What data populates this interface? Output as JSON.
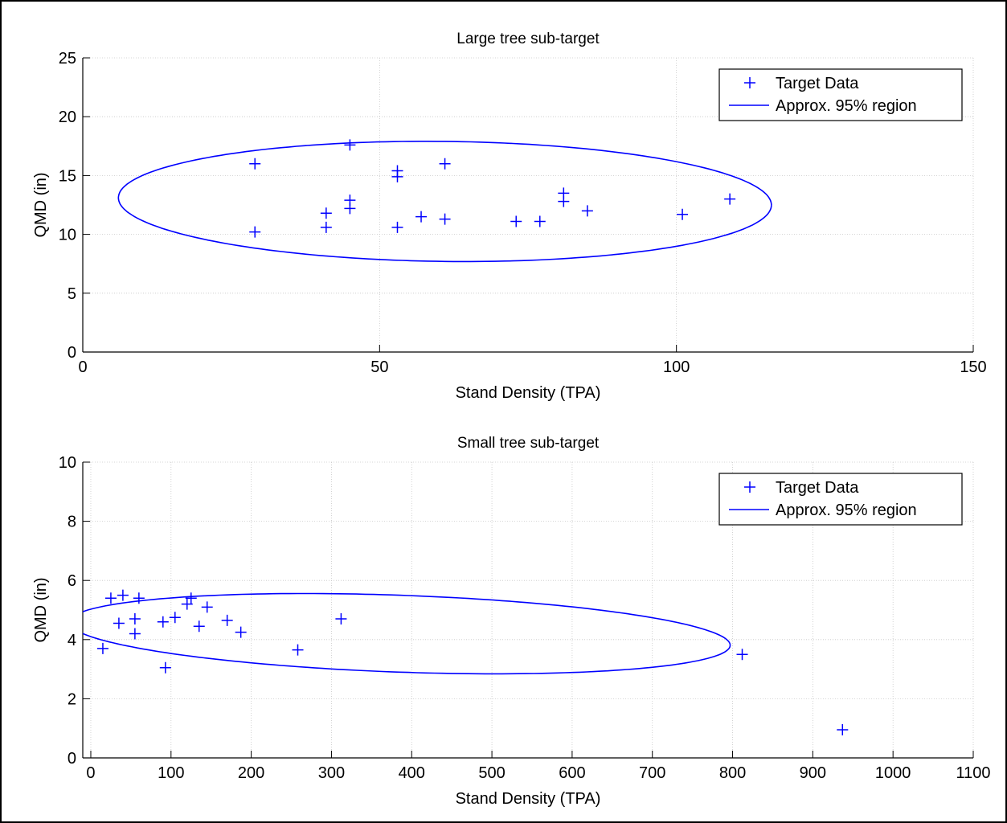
{
  "chart_data": [
    {
      "type": "scatter",
      "title": "Large tree sub-target",
      "xlabel": "Stand Density (TPA)",
      "ylabel": "QMD (in)",
      "xlim": [
        0,
        150
      ],
      "ylim": [
        0,
        25
      ],
      "xticks": [
        0,
        50,
        100,
        150
      ],
      "yticks": [
        0,
        5,
        10,
        15,
        20,
        25
      ],
      "grid": true,
      "legend_position": "top-right",
      "colors": {
        "series": "#0000ff"
      },
      "series": [
        {
          "name": "Target Data",
          "marker": "+",
          "points": [
            [
              29,
              16.0
            ],
            [
              29,
              10.2
            ],
            [
              41,
              11.8
            ],
            [
              41,
              10.6
            ],
            [
              45,
              17.6
            ],
            [
              45,
              12.9
            ],
            [
              45,
              12.2
            ],
            [
              53,
              15.4
            ],
            [
              53,
              14.9
            ],
            [
              53,
              10.6
            ],
            [
              57,
              11.5
            ],
            [
              61,
              16.0
            ],
            [
              61,
              11.3
            ],
            [
              73,
              11.1
            ],
            [
              77,
              11.1
            ],
            [
              81,
              13.5
            ],
            [
              81,
              12.8
            ],
            [
              85,
              12.0
            ],
            [
              101,
              11.7
            ],
            [
              109,
              13.0
            ]
          ]
        },
        {
          "name": "Approx. 95% region",
          "style": "line",
          "ellipse": {
            "center": [
              61,
              12.8
            ],
            "x_radius": 55,
            "y_radius": 5.1,
            "tilt": -0.06
          }
        }
      ]
    },
    {
      "type": "scatter",
      "title": "Small tree sub-target",
      "xlabel": "Stand Density (TPA)",
      "ylabel": "QMD (in)",
      "xlim": [
        -10,
        1100
      ],
      "ylim": [
        0,
        10
      ],
      "xticks": [
        0,
        100,
        200,
        300,
        400,
        500,
        600,
        700,
        800,
        900,
        1000,
        1100
      ],
      "yticks": [
        0,
        2,
        4,
        6,
        8,
        10
      ],
      "grid": true,
      "legend_position": "top-right",
      "colors": {
        "series": "#0000ff"
      },
      "series": [
        {
          "name": "Target Data",
          "marker": "+",
          "points": [
            [
              15,
              3.7
            ],
            [
              25,
              5.4
            ],
            [
              35,
              4.55
            ],
            [
              40,
              5.5
            ],
            [
              55,
              4.7
            ],
            [
              55,
              4.2
            ],
            [
              60,
              5.4
            ],
            [
              90,
              4.6
            ],
            [
              93,
              3.05
            ],
            [
              105,
              4.75
            ],
            [
              120,
              5.2
            ],
            [
              125,
              5.4
            ],
            [
              135,
              4.45
            ],
            [
              145,
              5.1
            ],
            [
              170,
              4.65
            ],
            [
              187,
              4.25
            ],
            [
              258,
              3.65
            ],
            [
              312,
              4.7
            ],
            [
              812,
              3.5
            ],
            [
              937,
              0.95
            ]
          ]
        },
        {
          "name": "Approx. 95% region",
          "style": "line",
          "ellipse": {
            "center": [
              385,
              4.2
            ],
            "x_radius": 412,
            "y_radius": 1.3,
            "tilt": -0.3
          }
        }
      ]
    }
  ]
}
